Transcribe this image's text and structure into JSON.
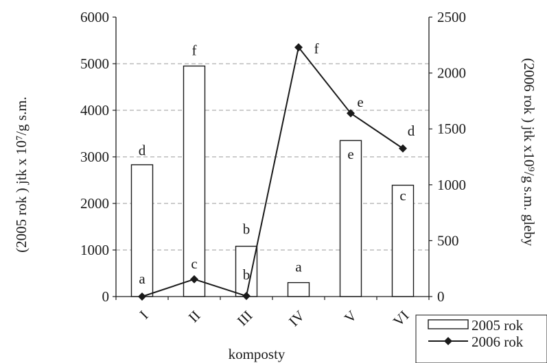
{
  "chart_data": {
    "type": "bar",
    "categories": [
      "I",
      "II",
      "III",
      "IV",
      "V",
      "VI"
    ],
    "xlabel": "komposty",
    "ylabel_left": "(2005 rok ) jtk x 10⁷/g s.m.",
    "ylabel_right": "(2006 rok ) jtk x10⁹/g s.m. gleby",
    "left_axis": {
      "min": 0,
      "max": 6000,
      "ticks": [
        0,
        1000,
        2000,
        3000,
        4000,
        5000,
        6000
      ]
    },
    "right_axis": {
      "min": 0,
      "max": 2500,
      "ticks": [
        0,
        500,
        1000,
        1500,
        2000,
        2500
      ]
    },
    "grid": "horizontal dashed",
    "legend_position": "bottom-right",
    "series": [
      {
        "name": "2005 rok",
        "type": "bar",
        "axis": "left",
        "values": [
          2830,
          4950,
          1080,
          300,
          3350,
          2390
        ],
        "letters": [
          "d",
          "f",
          "b",
          "a",
          "e",
          "c"
        ]
      },
      {
        "name": "2006 rok",
        "type": "line",
        "axis": "right",
        "marker": "diamond",
        "values": [
          0,
          155,
          5,
          2230,
          1640,
          1325
        ],
        "letters": [
          "a",
          "c",
          "b",
          "f",
          "e",
          "d"
        ]
      }
    ]
  }
}
